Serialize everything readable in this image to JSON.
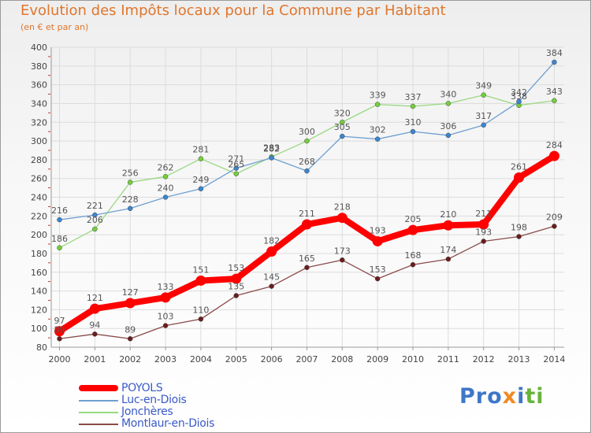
{
  "chart_data": {
    "type": "line",
    "title": "Evolution des Impôts locaux pour la Commune par Habitant",
    "subtitle": "(en € et par an)",
    "xlabel": "",
    "ylabel": "",
    "x": [
      2000,
      2001,
      2002,
      2003,
      2004,
      2005,
      2006,
      2007,
      2008,
      2009,
      2010,
      2011,
      2012,
      2013,
      2014
    ],
    "ylim": [
      80,
      400
    ],
    "ytick_step": 20,
    "grid": true,
    "legend_position": "bottom-left",
    "series": [
      {
        "name": "POYOLS",
        "color": "#ff0000",
        "marker_color": "#ff0000",
        "label_color": "#555555",
        "emphasis": "bold",
        "values": [
          97,
          121,
          127,
          133,
          151,
          153,
          182,
          211,
          218,
          193,
          205,
          210,
          211,
          261,
          284
        ]
      },
      {
        "name": "Luc-en-Diois",
        "color": "#6e9fd0",
        "marker_color": "#3a86cf",
        "label_color": "#555555",
        "emphasis": "normal",
        "values": [
          216,
          221,
          228,
          240,
          249,
          271,
          282,
          268,
          305,
          302,
          310,
          306,
          317,
          342,
          384
        ]
      },
      {
        "name": "Jonchères",
        "color": "#9ad882",
        "marker_color": "#74cf3a",
        "label_color": "#555555",
        "emphasis": "normal",
        "values": [
          186,
          206,
          256,
          262,
          281,
          265,
          283,
          300,
          320,
          339,
          337,
          340,
          349,
          338,
          343
        ]
      },
      {
        "name": "Montlaur-en-Diois",
        "color": "#8a4a4a",
        "marker_color": "#6b1d1d",
        "label_color": "#555555",
        "emphasis": "normal",
        "values": [
          89,
          94,
          89,
          103,
          110,
          135,
          145,
          165,
          173,
          153,
          168,
          174,
          193,
          198,
          209
        ]
      }
    ]
  },
  "logo_text": {
    "part1": "Pro",
    "part2": "x",
    "part3": "i",
    "part4": "ti"
  }
}
